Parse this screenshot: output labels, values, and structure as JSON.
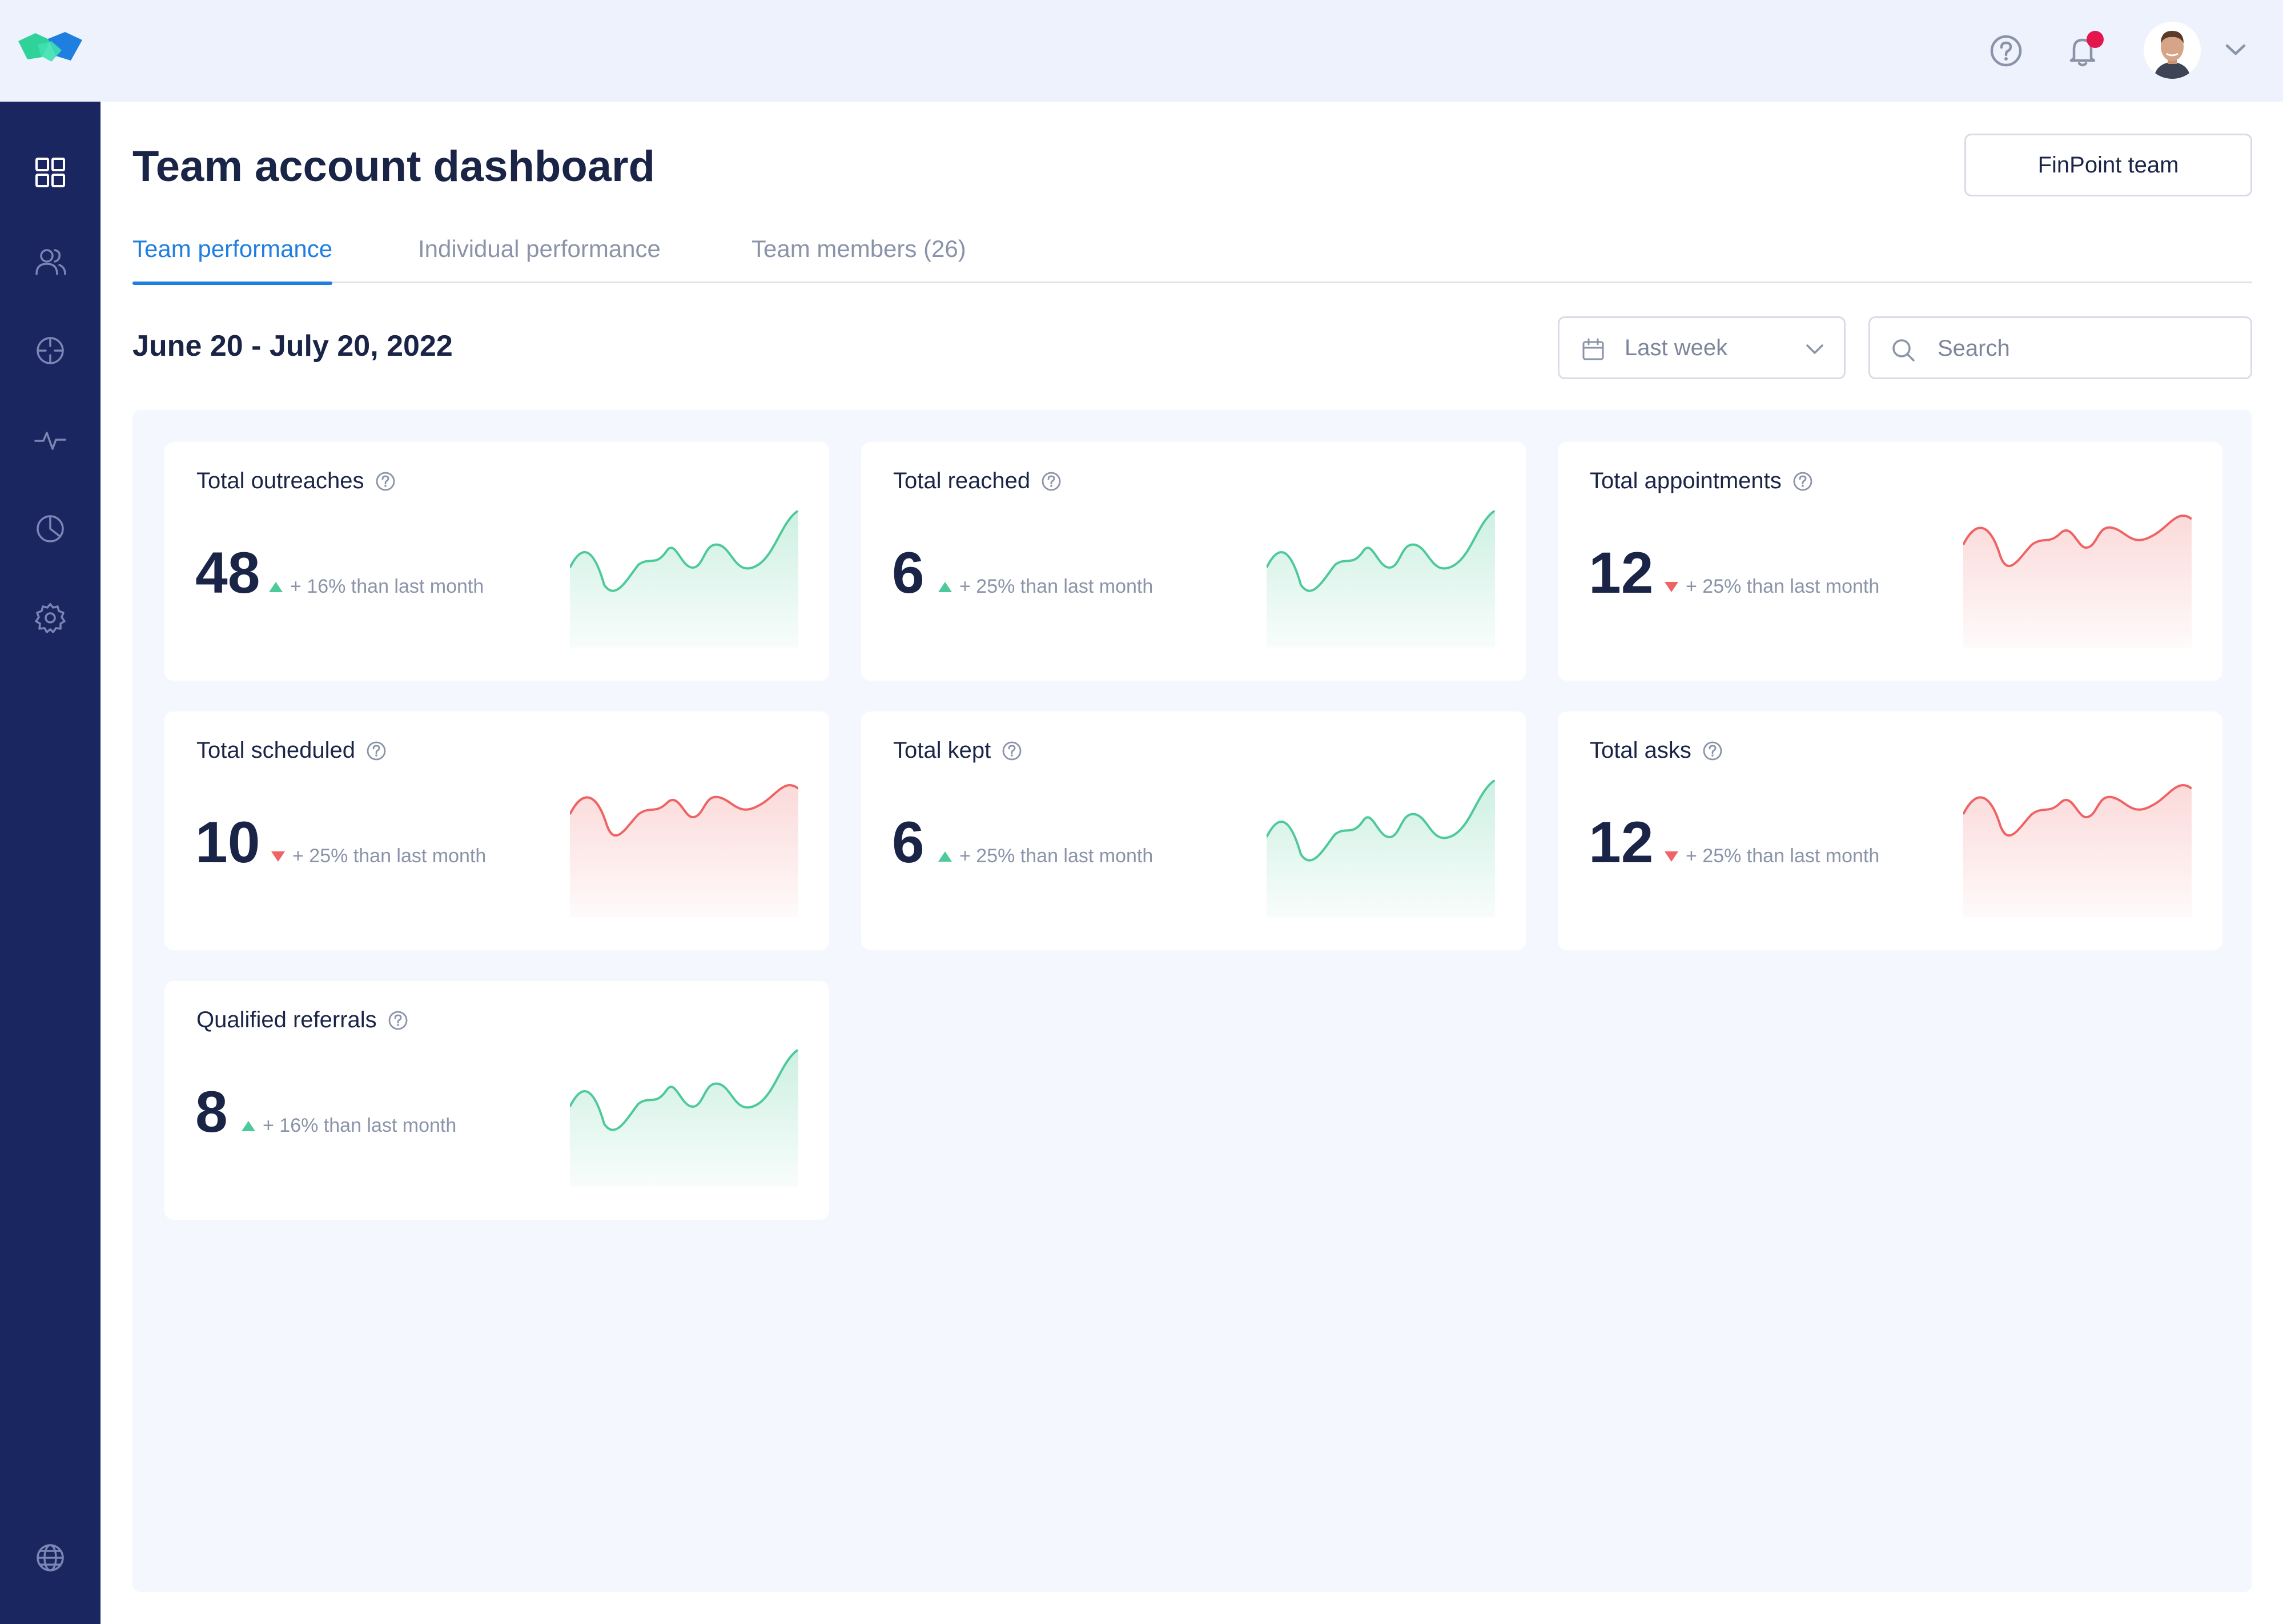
{
  "page": {
    "title": "Team account dashboard",
    "team_button": "FinPoint team",
    "date_range": "June 20 - July 20, 2022"
  },
  "tabs": [
    {
      "label": "Team performance",
      "active": true
    },
    {
      "label": "Individual performance",
      "active": false
    },
    {
      "label": "Team members (26)",
      "active": false
    }
  ],
  "filters": {
    "period": "Last week",
    "search_placeholder": "Search"
  },
  "sidebar": {
    "items": [
      {
        "icon": "dashboard-grid-icon",
        "active": true
      },
      {
        "icon": "users-icon",
        "active": false
      },
      {
        "icon": "target-icon",
        "active": false
      },
      {
        "icon": "activity-icon",
        "active": false
      },
      {
        "icon": "pie-chart-icon",
        "active": false
      },
      {
        "icon": "gear-icon",
        "active": false
      }
    ],
    "bottom_icon": "globe-icon"
  },
  "colors": {
    "sidebar": "#1a2660",
    "accent": "#1f7fe0",
    "up": "#4ec99a",
    "down": "#ee6363",
    "notification": "#e5154e"
  },
  "cards": [
    {
      "title": "Total outreaches",
      "value": "48",
      "trend": "up",
      "delta": "+ 16% than last month"
    },
    {
      "title": "Total reached",
      "value": "6",
      "trend": "up",
      "delta": "+ 25% than last month"
    },
    {
      "title": "Total appointments",
      "value": "12",
      "trend": "down",
      "delta": "+ 25% than last month"
    },
    {
      "title": "Total scheduled",
      "value": "10",
      "trend": "down",
      "delta": "+ 25% than last month"
    },
    {
      "title": "Total kept",
      "value": "6",
      "trend": "up",
      "delta": "+ 25% than last month"
    },
    {
      "title": "Total asks",
      "value": "12",
      "trend": "down",
      "delta": "+ 25% than last month"
    },
    {
      "title": "Qualified referrals",
      "value": "8",
      "trend": "up",
      "delta": "+ 16% than last month"
    }
  ]
}
